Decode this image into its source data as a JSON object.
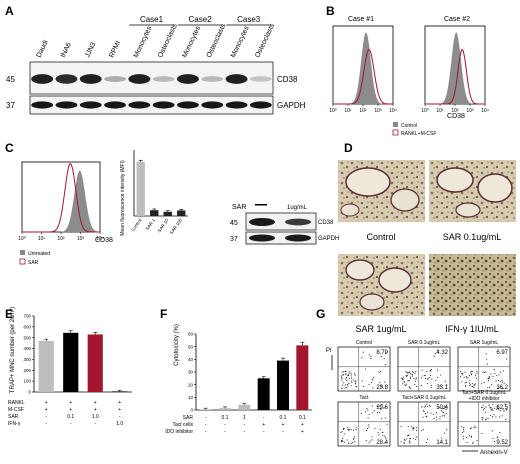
{
  "panels": {
    "A": {
      "label": "A",
      "cases": [
        "Case1",
        "Case2",
        "Case3"
      ],
      "lanes": [
        "Daudi",
        "INA6",
        "JJN3",
        "RPMI",
        "Monocytes",
        "Osteoclasts",
        "Monocytes",
        "Osteoclasts",
        "Monocytes",
        "Osteoclasts"
      ],
      "mw": [
        "45",
        "37"
      ],
      "bands": [
        "CD38",
        "GAPDH"
      ],
      "cd38_intensity": [
        0.95,
        0.9,
        0.95,
        0.35,
        0.95,
        0.3,
        0.95,
        0.3,
        0.95,
        0.25
      ]
    },
    "B": {
      "label": "B",
      "titles": [
        "Case #1",
        "Case #2"
      ],
      "ticks": [
        "10⁰",
        "10¹",
        "10²",
        "10³",
        "10⁴"
      ],
      "xlabel": "CD38",
      "legend": [
        "Control",
        "RANKL+M-CSF"
      ]
    },
    "C": {
      "label": "C",
      "ticks": [
        "10⁰",
        "10¹",
        "10²",
        "10³",
        "10⁴"
      ],
      "xlabel": "CD38",
      "legend": [
        "Untreated",
        "SAR"
      ],
      "bar_ylabel": "Mean fluorescence intensity (MFI)",
      "bar_categories": [
        "Control",
        "SAR 1",
        "SAR 10",
        "SAR 100"
      ],
      "bar_values": [
        2050,
        220,
        160,
        210
      ],
      "bar_ymax": 2500,
      "blot_header": [
        "SAR",
        "1ug/mL"
      ],
      "mw": [
        "45",
        "37"
      ],
      "bands": [
        "CD38",
        "GAPDH"
      ]
    },
    "D": {
      "label": "D",
      "captions": [
        "Control",
        "SAR 0.1ug/mL",
        "SAR 1ug/mL",
        "IFN-γ 1IU/mL"
      ]
    },
    "E": {
      "label": "E",
      "ylabel": "TRAP+ MNC number (per 2cm²)",
      "yticks": [
        "0",
        "100",
        "200",
        "300",
        "400",
        "500",
        "600",
        "700"
      ],
      "row_labels": [
        "RANKL",
        "M-CSF",
        "SAR",
        "IFN-γ"
      ],
      "rows": [
        [
          "+",
          "+",
          "+",
          "+"
        ],
        [
          "+",
          "+",
          "+",
          "+"
        ],
        [
          "-",
          "0.1",
          "1.0",
          "-"
        ],
        [
          "-",
          "-",
          "-",
          "1.0"
        ]
      ],
      "values": [
        470,
        545,
        530,
        5
      ],
      "colors": [
        "#bdbdbd",
        "#000000",
        "#a3162d",
        "#000000"
      ],
      "ymax": 700
    },
    "F": {
      "label": "F",
      "ylabel": "Cytotoxicity (%)",
      "yticks": [
        "0",
        "10",
        "20",
        "30",
        "40",
        "50",
        "60"
      ],
      "row_labels": [
        "SAR",
        "Tact cells",
        "IDO inhibitor"
      ],
      "rows": [
        [
          "-",
          "0.1",
          "1",
          "-",
          "0.1",
          "0.1"
        ],
        [
          "-",
          "-",
          "-",
          "+",
          "+",
          "+"
        ],
        [
          "-",
          "-",
          "-",
          "-",
          "-",
          "+"
        ]
      ],
      "values": [
        0.5,
        1.5,
        4,
        25,
        39,
        51
      ],
      "colors": [
        "#bdbdbd",
        "#bdbdbd",
        "#bdbdbd",
        "#000000",
        "#000000",
        "#a3162d"
      ],
      "ymax": 60
    },
    "G": {
      "label": "G",
      "titles": [
        "Control",
        "SAR 0.1ug/mL",
        "SAR 1ug/mL",
        "Tact",
        "Tact+SAR 0.1ug/mL",
        "Tact+SAR 0.1ug/mL +IDO inhibitor"
      ],
      "ur": [
        "8.79",
        "4.32",
        "6.97",
        "29.6",
        "50.4",
        "62.5"
      ],
      "lr": [
        "29.8",
        "33.1",
        "36.2",
        "28.4",
        "14.1",
        "9.52"
      ],
      "ylabel": "PI",
      "xlabel": "Annexin-V"
    }
  }
}
